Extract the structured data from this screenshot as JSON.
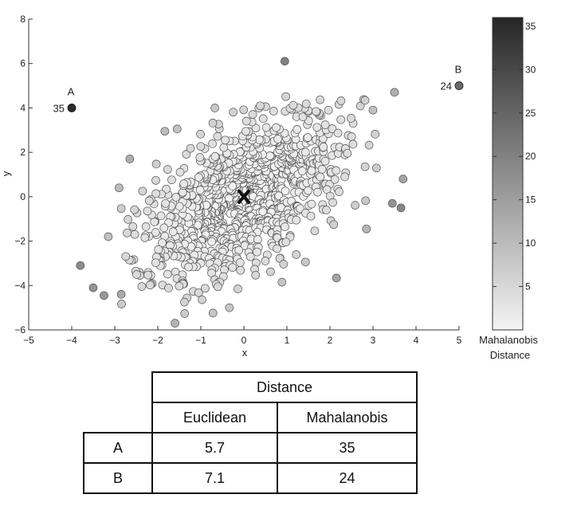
{
  "chart_data": {
    "type": "scatter",
    "xlabel": "x",
    "ylabel": "y",
    "xlim": [
      -5,
      5
    ],
    "ylim": [
      -6,
      8
    ],
    "xticks": [
      -5,
      -4,
      -3,
      -2,
      -1,
      0,
      1,
      2,
      3,
      4,
      5
    ],
    "yticks": [
      -6,
      -4,
      -2,
      0,
      2,
      4,
      6,
      8
    ],
    "center_marker": {
      "x": 0,
      "y": 0,
      "symbol": "x"
    },
    "highlighted_points": [
      {
        "label": "A",
        "x": -4,
        "y": 4,
        "mahalanobis": 35,
        "value_label": "35"
      },
      {
        "label": "B",
        "x": 5,
        "y": 5,
        "mahalanobis": 24,
        "value_label": "24"
      }
    ],
    "distribution": {
      "mean": [
        0,
        0
      ],
      "sd_x": 1.25,
      "sd_y": 2.0,
      "correlation": 0.55,
      "approx_count": 1000
    },
    "outliers": [
      {
        "x": 0.95,
        "y": 6.1,
        "mahalanobis": 20
      },
      {
        "x": -3.8,
        "y": -3.1,
        "mahalanobis": 18
      },
      {
        "x": -3.5,
        "y": -4.1,
        "mahalanobis": 17
      },
      {
        "x": -3.25,
        "y": -4.45,
        "mahalanobis": 16
      },
      {
        "x": -2.85,
        "y": -4.4,
        "mahalanobis": 13
      },
      {
        "x": 3.65,
        "y": -0.5,
        "mahalanobis": 19
      },
      {
        "x": 3.45,
        "y": -0.3,
        "mahalanobis": 17
      },
      {
        "x": 3.7,
        "y": 0.8,
        "mahalanobis": 14
      },
      {
        "x": 3.5,
        "y": 4.7,
        "mahalanobis": 12
      },
      {
        "x": -2.65,
        "y": 1.7,
        "mahalanobis": 12
      },
      {
        "x": -1.6,
        "y": -5.7,
        "mahalanobis": 11
      },
      {
        "x": -2.9,
        "y": 0.4,
        "mahalanobis": 10
      },
      {
        "x": -3.15,
        "y": -1.8,
        "mahalanobis": 9
      },
      {
        "x": 3.0,
        "y": 3.9,
        "mahalanobis": 9
      }
    ],
    "colorbar": {
      "min": 0,
      "max": 36,
      "ticks": [
        5,
        10,
        15,
        20,
        25,
        30,
        35
      ],
      "label_line1": "Mahalanobis",
      "label_line2": "Distance",
      "color_low": "#f4f4f4",
      "color_high": "#262626"
    }
  },
  "table": {
    "group_header": "Distance",
    "columns": [
      "Euclidean",
      "Mahalanobis"
    ],
    "rows": [
      {
        "label": "A",
        "euclidean": "5.7",
        "mahalanobis": "35"
      },
      {
        "label": "B",
        "euclidean": "7.1",
        "mahalanobis": "24"
      }
    ]
  }
}
